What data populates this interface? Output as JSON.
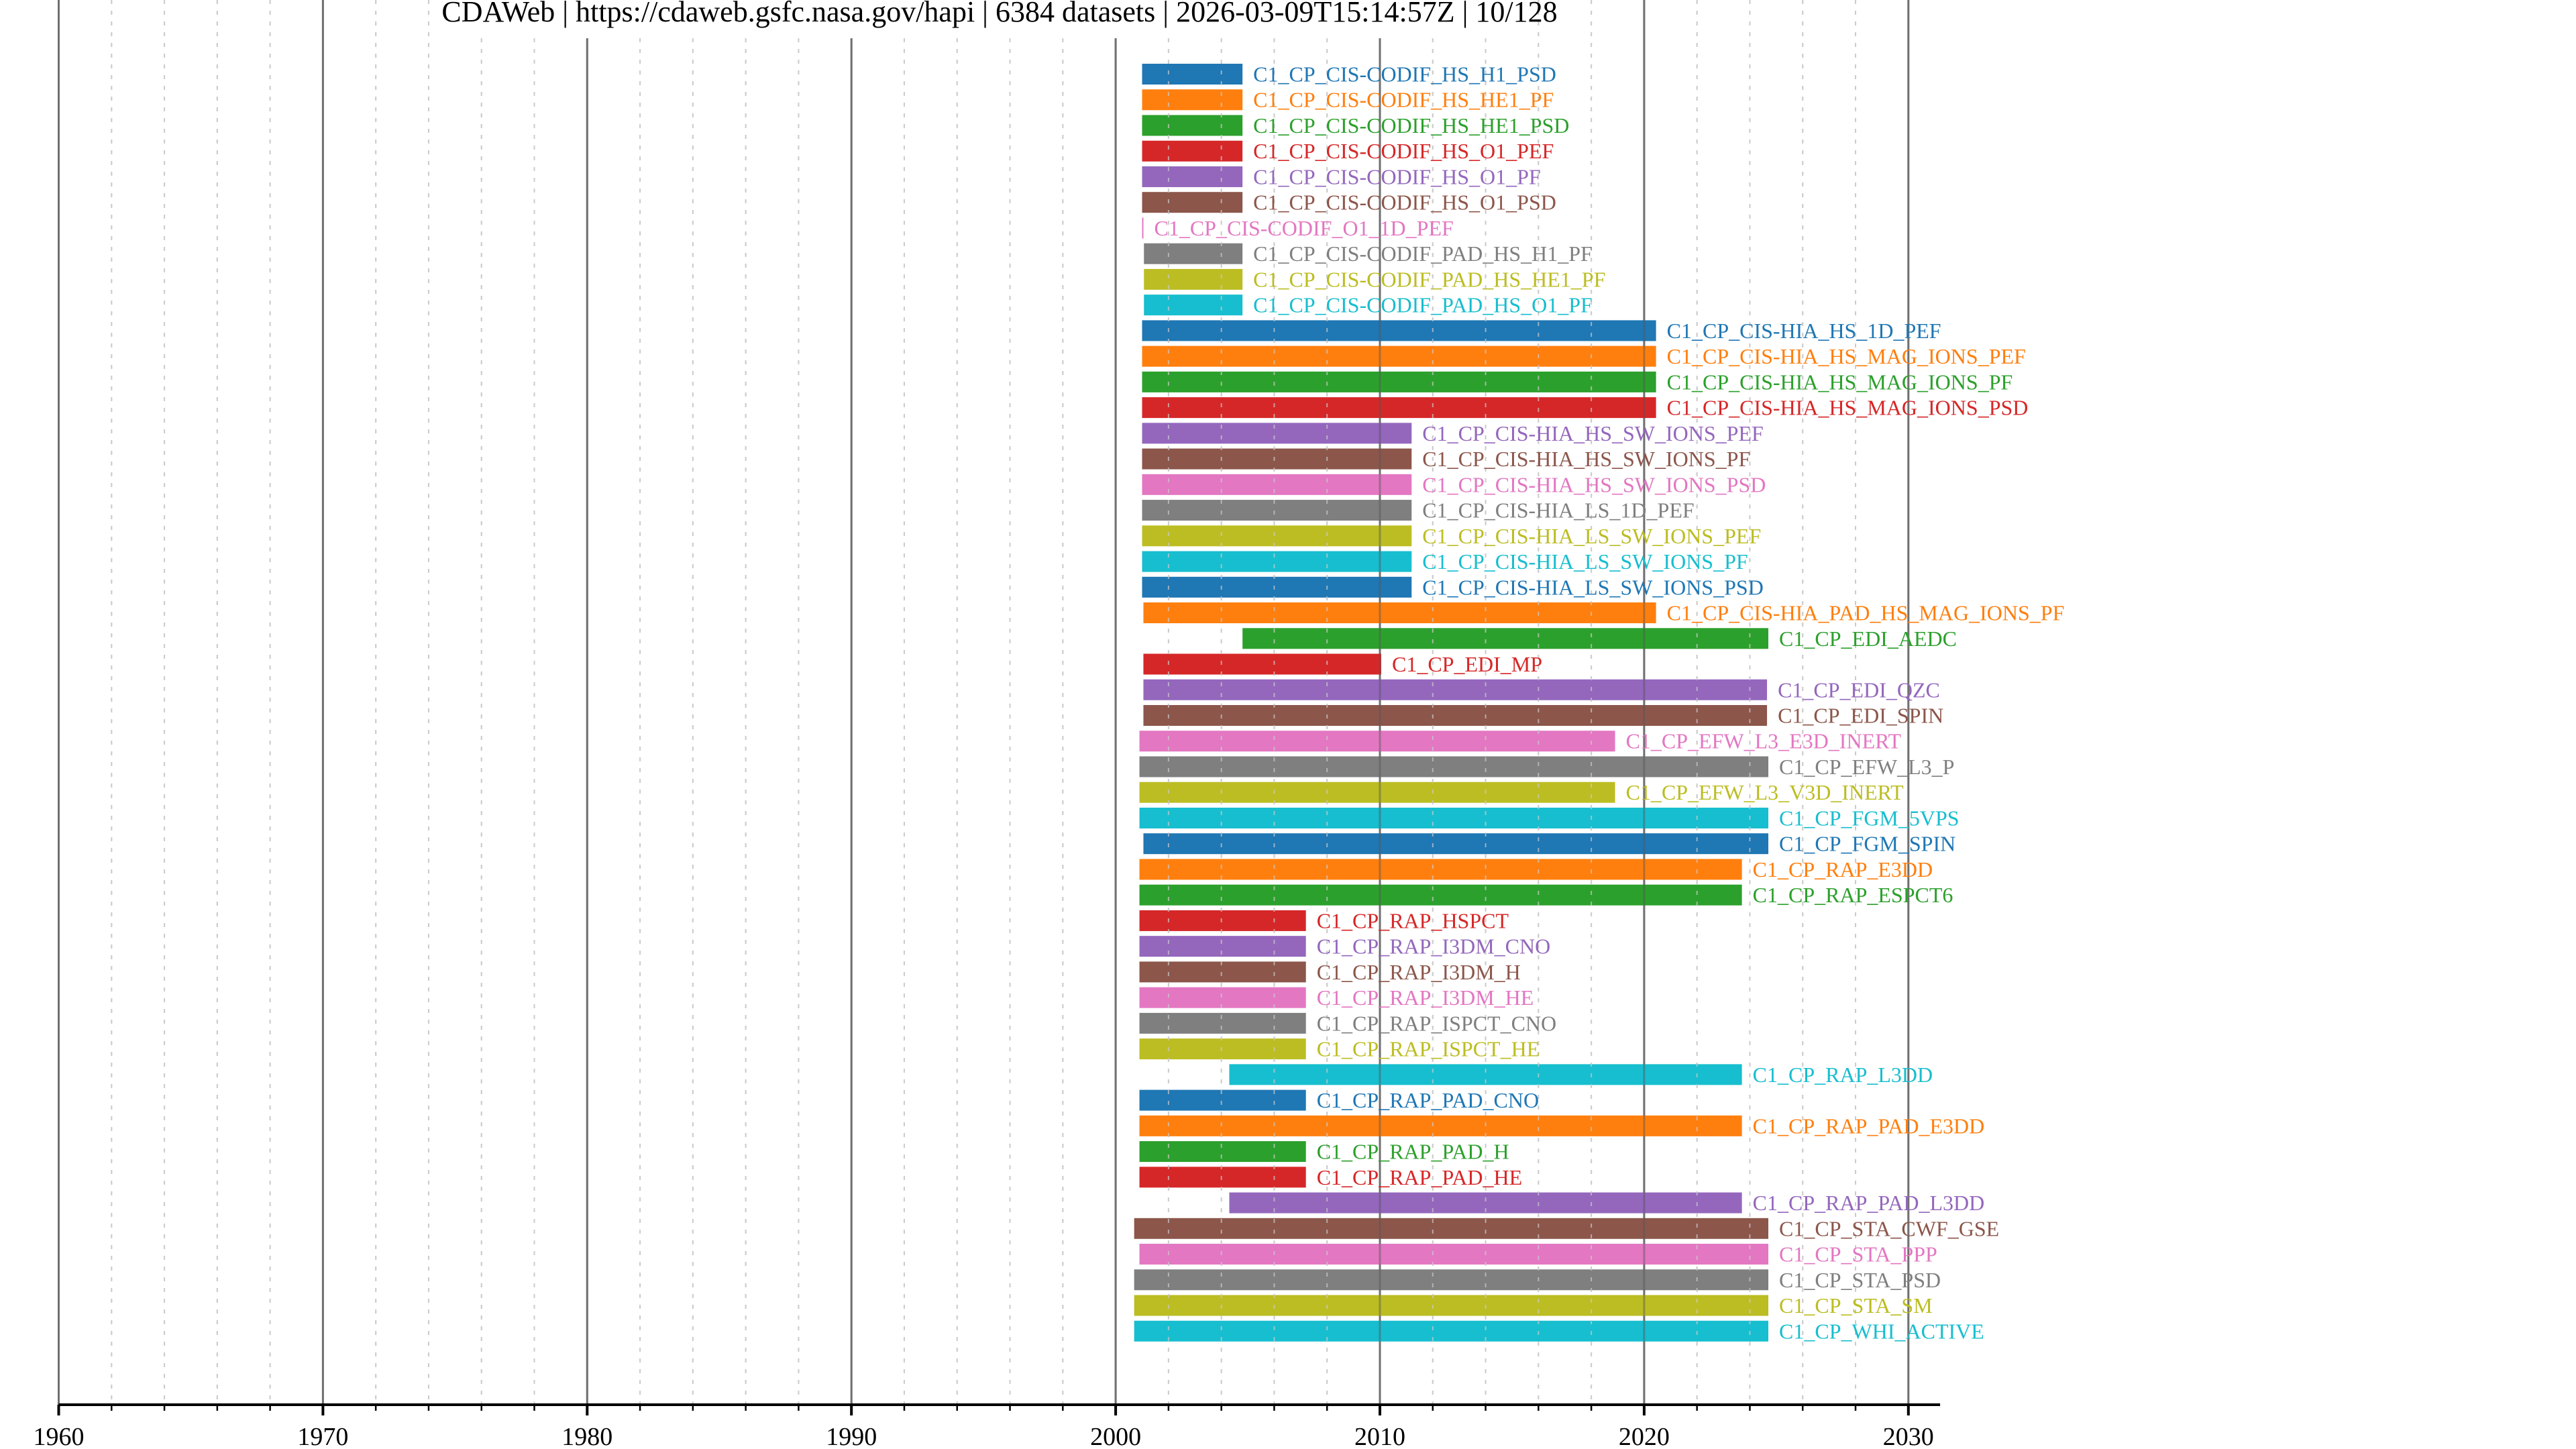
{
  "chart_data": {
    "type": "timeline",
    "title": "CDAWeb | https://cdaweb.gsfc.nasa.gov/hapi | 6384 datasets | 2026-03-09T15:14:57Z | 10/128",
    "title_parts": {
      "source": "CDAWeb",
      "server": "https://cdaweb.gsfc.nasa.gov/hapi",
      "dataset_count": "6384 datasets",
      "timestamp": "2026-03-09T15:14:57Z",
      "page": "10/128"
    },
    "xlabel": "",
    "ylabel": "",
    "xlim": [
      1960,
      2031.2
    ],
    "x_major_ticks": [
      1960,
      1970,
      1980,
      1990,
      2000,
      2010,
      2020,
      2030
    ],
    "x_tick_labels": [
      "1960",
      "1970",
      "1980",
      "1990",
      "2000",
      "2010",
      "2020",
      "2030"
    ],
    "x_minor_step": 2,
    "grid": true,
    "legend": "none",
    "palette": [
      "#1f77b4",
      "#ff7f0e",
      "#2ca02c",
      "#d62728",
      "#9467bd",
      "#8c564b",
      "#e377c2",
      "#7f7f7f",
      "#bcbd22",
      "#17becf"
    ],
    "series": [
      {
        "name": "C1_CP_CIS-CODIF_HS_H1_PSD",
        "start": 2001.0,
        "end": 2004.8
      },
      {
        "name": "C1_CP_CIS-CODIF_HS_HE1_PF",
        "start": 2001.0,
        "end": 2004.8
      },
      {
        "name": "C1_CP_CIS-CODIF_HS_HE1_PSD",
        "start": 2001.0,
        "end": 2004.8
      },
      {
        "name": "C1_CP_CIS-CODIF_HS_O1_PEF",
        "start": 2001.0,
        "end": 2004.8
      },
      {
        "name": "C1_CP_CIS-CODIF_HS_O1_PF",
        "start": 2001.0,
        "end": 2004.8
      },
      {
        "name": "C1_CP_CIS-CODIF_HS_O1_PSD",
        "start": 2001.0,
        "end": 2004.8
      },
      {
        "name": "C1_CP_CIS-CODIF_O1_1D_PEF",
        "start": 2001.0,
        "end": 2001.0
      },
      {
        "name": "C1_CP_CIS-CODIF_PAD_HS_H1_PF",
        "start": 2001.07,
        "end": 2004.8
      },
      {
        "name": "C1_CP_CIS-CODIF_PAD_HS_HE1_PF",
        "start": 2001.07,
        "end": 2004.8
      },
      {
        "name": "C1_CP_CIS-CODIF_PAD_HS_O1_PF",
        "start": 2001.07,
        "end": 2004.8
      },
      {
        "name": "C1_CP_CIS-HIA_HS_1D_PEF",
        "start": 2001.0,
        "end": 2020.45
      },
      {
        "name": "C1_CP_CIS-HIA_HS_MAG_IONS_PEF",
        "start": 2001.0,
        "end": 2020.45
      },
      {
        "name": "C1_CP_CIS-HIA_HS_MAG_IONS_PF",
        "start": 2001.0,
        "end": 2020.45
      },
      {
        "name": "C1_CP_CIS-HIA_HS_MAG_IONS_PSD",
        "start": 2001.0,
        "end": 2020.45
      },
      {
        "name": "C1_CP_CIS-HIA_HS_SW_IONS_PEF",
        "start": 2001.0,
        "end": 2011.2
      },
      {
        "name": "C1_CP_CIS-HIA_HS_SW_IONS_PF",
        "start": 2001.0,
        "end": 2011.2
      },
      {
        "name": "C1_CP_CIS-HIA_HS_SW_IONS_PSD",
        "start": 2001.0,
        "end": 2011.2
      },
      {
        "name": "C1_CP_CIS-HIA_LS_1D_PEF",
        "start": 2001.0,
        "end": 2011.2
      },
      {
        "name": "C1_CP_CIS-HIA_LS_SW_IONS_PEF",
        "start": 2001.0,
        "end": 2011.2
      },
      {
        "name": "C1_CP_CIS-HIA_LS_SW_IONS_PF",
        "start": 2001.0,
        "end": 2011.2
      },
      {
        "name": "C1_CP_CIS-HIA_LS_SW_IONS_PSD",
        "start": 2001.0,
        "end": 2011.2
      },
      {
        "name": "C1_CP_CIS-HIA_PAD_HS_MAG_IONS_PF",
        "start": 2001.05,
        "end": 2020.45
      },
      {
        "name": "C1_CP_EDI_AEDC",
        "start": 2004.8,
        "end": 2024.7
      },
      {
        "name": "C1_CP_EDI_MP",
        "start": 2001.05,
        "end": 2010.05
      },
      {
        "name": "C1_CP_EDI_QZC",
        "start": 2001.05,
        "end": 2024.65
      },
      {
        "name": "C1_CP_EDI_SPIN",
        "start": 2001.05,
        "end": 2024.65
      },
      {
        "name": "C1_CP_EFW_L3_E3D_INERT",
        "start": 2000.9,
        "end": 2018.9
      },
      {
        "name": "C1_CP_EFW_L3_P",
        "start": 2000.9,
        "end": 2024.7
      },
      {
        "name": "C1_CP_EFW_L3_V3D_INERT",
        "start": 2000.9,
        "end": 2018.9
      },
      {
        "name": "C1_CP_FGM_5VPS",
        "start": 2000.9,
        "end": 2024.7
      },
      {
        "name": "C1_CP_FGM_SPIN",
        "start": 2001.05,
        "end": 2024.7
      },
      {
        "name": "C1_CP_RAP_E3DD",
        "start": 2000.9,
        "end": 2023.7
      },
      {
        "name": "C1_CP_RAP_ESPCT6",
        "start": 2000.9,
        "end": 2023.7
      },
      {
        "name": "C1_CP_RAP_HSPCT",
        "start": 2000.9,
        "end": 2007.2
      },
      {
        "name": "C1_CP_RAP_I3DM_CNO",
        "start": 2000.9,
        "end": 2007.2
      },
      {
        "name": "C1_CP_RAP_I3DM_H",
        "start": 2000.9,
        "end": 2007.2
      },
      {
        "name": "C1_CP_RAP_I3DM_HE",
        "start": 2000.9,
        "end": 2007.2
      },
      {
        "name": "C1_CP_RAP_ISPCT_CNO",
        "start": 2000.9,
        "end": 2007.2
      },
      {
        "name": "C1_CP_RAP_ISPCT_HE",
        "start": 2000.9,
        "end": 2007.2
      },
      {
        "name": "C1_CP_RAP_L3DD",
        "start": 2004.3,
        "end": 2023.7
      },
      {
        "name": "C1_CP_RAP_PAD_CNO",
        "start": 2000.9,
        "end": 2007.2
      },
      {
        "name": "C1_CP_RAP_PAD_E3DD",
        "start": 2000.9,
        "end": 2023.7
      },
      {
        "name": "C1_CP_RAP_PAD_H",
        "start": 2000.9,
        "end": 2007.2
      },
      {
        "name": "C1_CP_RAP_PAD_HE",
        "start": 2000.9,
        "end": 2007.2
      },
      {
        "name": "C1_CP_RAP_PAD_L3DD",
        "start": 2004.3,
        "end": 2023.7
      },
      {
        "name": "C1_CP_STA_CWF_GSE",
        "start": 2000.7,
        "end": 2024.7
      },
      {
        "name": "C1_CP_STA_PPP",
        "start": 2000.9,
        "end": 2024.7
      },
      {
        "name": "C1_CP_STA_PSD",
        "start": 2000.7,
        "end": 2024.7
      },
      {
        "name": "C1_CP_STA_SM",
        "start": 2000.7,
        "end": 2024.7
      },
      {
        "name": "C1_CP_WHI_ACTIVE",
        "start": 2000.7,
        "end": 2024.7
      }
    ]
  }
}
